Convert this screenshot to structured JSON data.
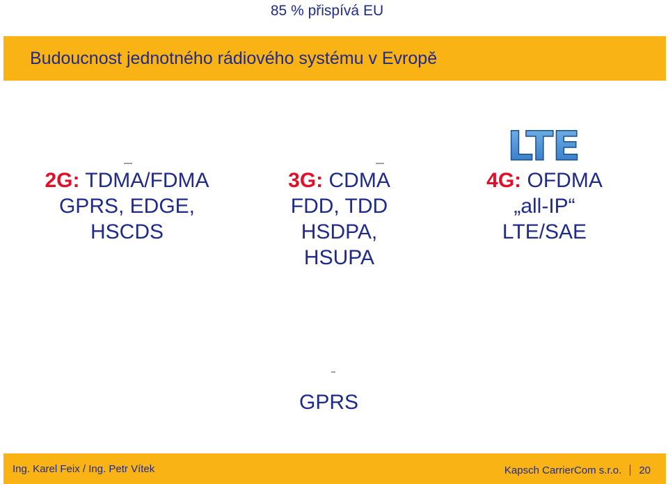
{
  "header": {
    "top_title": "85 % přispívá EU"
  },
  "banner": {
    "title": "Budoucnost jednotného rádiového systému v Evropě"
  },
  "columns": [
    {
      "label": "2G:",
      "tech": " TDMA/FDMA",
      "lines": [
        "GPRS, EDGE,",
        "HSCDS"
      ]
    },
    {
      "label": "3G:",
      "tech": " CDMA",
      "lines": [
        "FDD, TDD",
        "HSDPA,",
        "HSUPA"
      ]
    },
    {
      "label": "4G:",
      "tech": " OFDMA",
      "lines": [
        "„all-IP“",
        "LTE/SAE"
      ]
    }
  ],
  "logo": {
    "text": "LTE",
    "color": "#3c8fd6"
  },
  "bottom": {
    "text": "GPRS"
  },
  "footer": {
    "left": "Ing. Karel Feix / Ing. Petr Vítek",
    "company": "Kapsch CarrierCom s.r.o.",
    "page": "20"
  },
  "colors": {
    "accent": "#f9b314",
    "text": "#1f2a8a",
    "label": "#e0102a"
  }
}
